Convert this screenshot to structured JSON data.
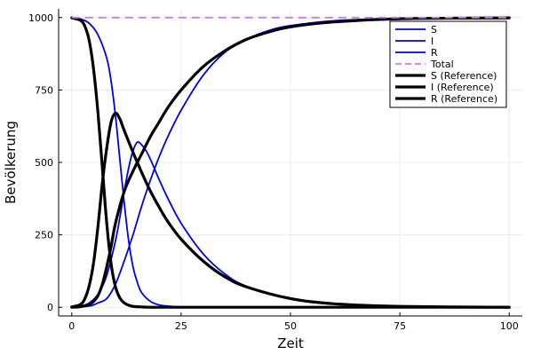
{
  "chart_data": {
    "type": "line",
    "title": "",
    "xlabel": "Zeit",
    "ylabel": "Bevölkerung",
    "xlim": [
      0,
      100
    ],
    "ylim": [
      0,
      1000
    ],
    "grid": true,
    "legend_position": "top-right",
    "xticks": [
      0,
      25,
      50,
      75,
      100
    ],
    "yticks": [
      0,
      250,
      500,
      750,
      1000
    ],
    "xtick_labels": [
      "0",
      "25",
      "50",
      "75",
      "100"
    ],
    "ytick_labels": [
      "0",
      "250",
      "500",
      "750",
      "1000"
    ],
    "series": [
      {
        "name": "S",
        "color": "#0000e6",
        "style": "solid",
        "width": "thin",
        "x": [
          0,
          2,
          4,
          6,
          8,
          9,
          10,
          11,
          12,
          13,
          14,
          15,
          16,
          18,
          20,
          22,
          25,
          30,
          40,
          50,
          75,
          100
        ],
        "y": [
          999,
          995,
          980,
          940,
          860,
          780,
          660,
          510,
          360,
          230,
          140,
          85,
          50,
          20,
          8,
          4,
          1,
          0,
          0,
          0,
          0,
          0
        ]
      },
      {
        "name": "I",
        "color": "#0000e6",
        "style": "solid",
        "width": "thin",
        "x": [
          0,
          2,
          4,
          6,
          8,
          10,
          11,
          12,
          13,
          14,
          15,
          16,
          17,
          18,
          20,
          22,
          25,
          30,
          35,
          40,
          50,
          60,
          75,
          100
        ],
        "y": [
          1,
          4,
          15,
          45,
          110,
          230,
          310,
          400,
          480,
          540,
          570,
          560,
          540,
          510,
          440,
          375,
          290,
          185,
          115,
          72,
          28,
          11,
          3,
          0
        ]
      },
      {
        "name": "R",
        "color": "#0000e6",
        "style": "solid",
        "width": "thin",
        "x": [
          0,
          4,
          6,
          8,
          10,
          12,
          14,
          15,
          16,
          18,
          20,
          22,
          25,
          30,
          35,
          40,
          45,
          50,
          60,
          75,
          100
        ],
        "y": [
          0,
          4,
          15,
          30,
          80,
          160,
          250,
          300,
          350,
          440,
          520,
          590,
          680,
          800,
          880,
          925,
          955,
          972,
          989,
          997,
          999
        ]
      },
      {
        "name": "Total",
        "color": "#c97de0",
        "style": "dashed",
        "width": "thin",
        "x": [
          0,
          100
        ],
        "y": [
          1000,
          1000
        ]
      },
      {
        "name": "S (Reference)",
        "color": "#000000",
        "style": "solid",
        "width": "thick",
        "x": [
          0,
          2,
          3,
          4,
          5,
          6,
          7,
          8,
          9,
          10,
          11,
          12,
          13,
          14,
          16,
          18,
          20,
          25,
          30,
          50,
          100
        ],
        "y": [
          999,
          990,
          970,
          920,
          820,
          670,
          480,
          290,
          150,
          70,
          32,
          15,
          7,
          3,
          1,
          0,
          0,
          0,
          0,
          0,
          0
        ]
      },
      {
        "name": "I (Reference)",
        "color": "#000000",
        "style": "solid",
        "width": "thick",
        "x": [
          0,
          2,
          3,
          4,
          5,
          6,
          7,
          8,
          9,
          10,
          11,
          12,
          14,
          16,
          18,
          20,
          22,
          25,
          30,
          35,
          40,
          50,
          60,
          75,
          100
        ],
        "y": [
          1,
          10,
          30,
          75,
          155,
          280,
          430,
          550,
          640,
          670,
          650,
          610,
          535,
          465,
          400,
          345,
          295,
          235,
          160,
          105,
          70,
          30,
          12,
          3,
          0
        ]
      },
      {
        "name": "R (Reference)",
        "color": "#000000",
        "style": "solid",
        "width": "thick",
        "x": [
          0,
          2,
          4,
          5,
          6,
          7,
          8,
          9,
          10,
          12,
          14,
          16,
          18,
          20,
          22,
          25,
          30,
          35,
          40,
          45,
          50,
          60,
          75,
          100
        ],
        "y": [
          0,
          2,
          10,
          20,
          40,
          80,
          140,
          210,
          290,
          400,
          470,
          530,
          590,
          640,
          690,
          750,
          830,
          885,
          925,
          950,
          968,
          985,
          996,
          999
        ]
      }
    ]
  }
}
